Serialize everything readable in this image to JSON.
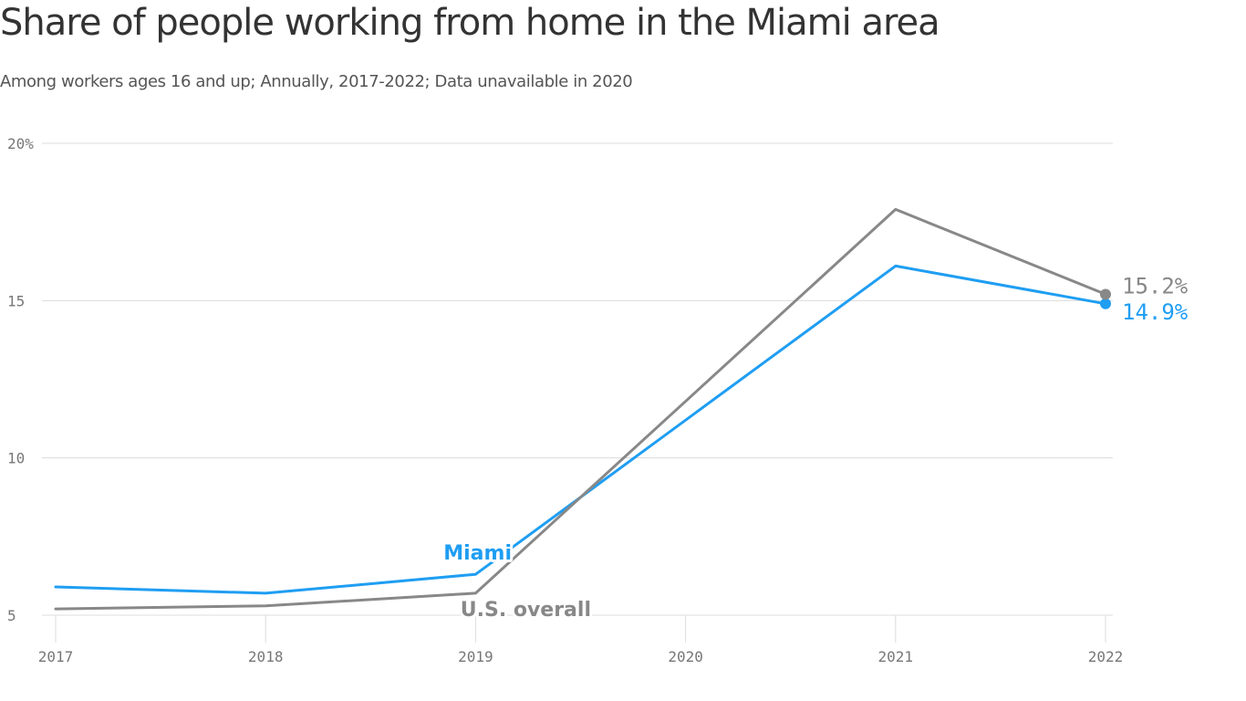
{
  "header": {
    "title": "Share of people working from home in the Miami area",
    "subtitle": "Among workers ages 16 and up; Annually, 2017-2022; Data unavailable in 2020"
  },
  "chart_data": {
    "type": "line",
    "x": [
      2017,
      2018,
      2019,
      2020,
      2021,
      2022
    ],
    "x_tick_labels": [
      "2017",
      "2018",
      "2019",
      "2020",
      "2021",
      "2022"
    ],
    "y_ticks": [
      5,
      10,
      15,
      20
    ],
    "y_tick_labels": [
      "5",
      "10",
      "15",
      "20%"
    ],
    "ylim": [
      5,
      20
    ],
    "grid": true,
    "series": [
      {
        "name": "Miami",
        "color": "#1f9ef2",
        "x": [
          2017,
          2018,
          2019,
          2021,
          2022
        ],
        "values": [
          5.9,
          5.7,
          6.3,
          16.1,
          14.9
        ],
        "end_label": "14.9%"
      },
      {
        "name": "U.S. overall",
        "color": "#888888",
        "x": [
          2017,
          2018,
          2019,
          2021,
          2022
        ],
        "values": [
          5.2,
          5.3,
          5.7,
          17.9,
          15.2
        ],
        "end_label": "15.2%"
      }
    ]
  }
}
